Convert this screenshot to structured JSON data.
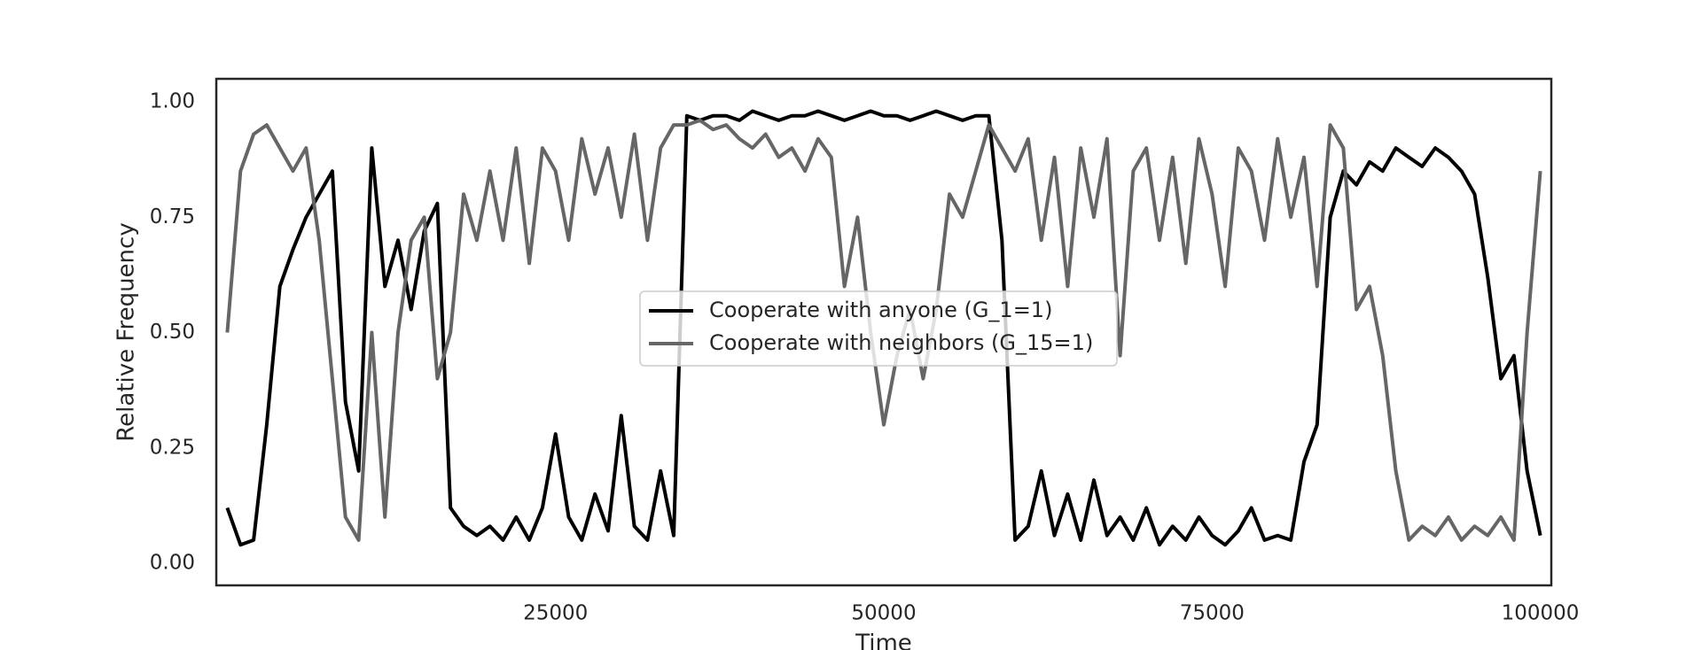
{
  "chart_data": {
    "type": "line",
    "xlabel": "Time",
    "ylabel": "Relative Frequency",
    "x": [
      0,
      1000,
      2000,
      3000,
      4000,
      5000,
      6000,
      7000,
      8000,
      9000,
      10000,
      11000,
      12000,
      13000,
      14000,
      15000,
      16000,
      17000,
      18000,
      19000,
      20000,
      21000,
      22000,
      23000,
      24000,
      25000,
      26000,
      27000,
      28000,
      29000,
      30000,
      31000,
      32000,
      33000,
      34000,
      35000,
      36000,
      37000,
      38000,
      39000,
      40000,
      41000,
      42000,
      43000,
      44000,
      45000,
      46000,
      47000,
      48000,
      49000,
      50000,
      51000,
      52000,
      53000,
      54000,
      55000,
      56000,
      57000,
      58000,
      59000,
      60000,
      61000,
      62000,
      63000,
      64000,
      65000,
      66000,
      67000,
      68000,
      69000,
      70000,
      71000,
      72000,
      73000,
      74000,
      75000,
      76000,
      77000,
      78000,
      79000,
      80000,
      81000,
      82000,
      83000,
      84000,
      85000,
      86000,
      87000,
      88000,
      89000,
      90000,
      91000,
      92000,
      93000,
      94000,
      95000,
      96000,
      97000,
      98000,
      99000,
      100000
    ],
    "series": [
      {
        "name": "Cooperate with anyone (G_1=1)",
        "color": "#000000",
        "values": [
          0.12,
          0.04,
          0.05,
          0.3,
          0.6,
          0.68,
          0.75,
          0.8,
          0.85,
          0.35,
          0.2,
          0.9,
          0.6,
          0.7,
          0.55,
          0.72,
          0.78,
          0.12,
          0.08,
          0.06,
          0.08,
          0.05,
          0.1,
          0.05,
          0.12,
          0.28,
          0.1,
          0.05,
          0.15,
          0.07,
          0.32,
          0.08,
          0.05,
          0.2,
          0.06,
          0.97,
          0.96,
          0.97,
          0.97,
          0.96,
          0.98,
          0.97,
          0.96,
          0.97,
          0.97,
          0.98,
          0.97,
          0.96,
          0.97,
          0.98,
          0.97,
          0.97,
          0.96,
          0.97,
          0.98,
          0.97,
          0.96,
          0.97,
          0.97,
          0.7,
          0.05,
          0.08,
          0.2,
          0.06,
          0.15,
          0.05,
          0.18,
          0.06,
          0.1,
          0.05,
          0.12,
          0.04,
          0.08,
          0.05,
          0.1,
          0.06,
          0.04,
          0.07,
          0.12,
          0.05,
          0.06,
          0.05,
          0.22,
          0.3,
          0.75,
          0.85,
          0.82,
          0.87,
          0.85,
          0.9,
          0.88,
          0.86,
          0.9,
          0.88,
          0.85,
          0.8,
          0.62,
          0.4,
          0.45,
          0.2,
          0.06
        ]
      },
      {
        "name": "Cooperate with neighbors (G_15=1)",
        "color": "#666666",
        "values": [
          0.5,
          0.85,
          0.93,
          0.95,
          0.9,
          0.85,
          0.9,
          0.7,
          0.4,
          0.1,
          0.05,
          0.5,
          0.1,
          0.5,
          0.7,
          0.75,
          0.4,
          0.5,
          0.8,
          0.7,
          0.85,
          0.7,
          0.9,
          0.65,
          0.9,
          0.85,
          0.7,
          0.92,
          0.8,
          0.9,
          0.75,
          0.93,
          0.7,
          0.9,
          0.95,
          0.95,
          0.96,
          0.94,
          0.95,
          0.92,
          0.9,
          0.93,
          0.88,
          0.9,
          0.85,
          0.92,
          0.88,
          0.6,
          0.75,
          0.5,
          0.3,
          0.45,
          0.55,
          0.4,
          0.55,
          0.8,
          0.75,
          0.85,
          0.95,
          0.9,
          0.85,
          0.92,
          0.7,
          0.88,
          0.6,
          0.9,
          0.75,
          0.92,
          0.45,
          0.85,
          0.9,
          0.7,
          0.88,
          0.65,
          0.92,
          0.8,
          0.6,
          0.9,
          0.85,
          0.7,
          0.92,
          0.75,
          0.88,
          0.6,
          0.95,
          0.9,
          0.55,
          0.6,
          0.45,
          0.2,
          0.05,
          0.08,
          0.06,
          0.1,
          0.05,
          0.08,
          0.06,
          0.1,
          0.05,
          0.5,
          0.85
        ]
      }
    ],
    "xlim": [
      -840,
      100840
    ],
    "ylim": [
      -0.048,
      1.05
    ],
    "xticks": [
      25000,
      50000,
      75000,
      100000
    ],
    "yticks": [
      {
        "value": 0,
        "label": "0.00"
      },
      {
        "value": 0.25,
        "label": "0.25"
      },
      {
        "value": 0.5,
        "label": "0.50"
      },
      {
        "value": 0.75,
        "label": "0.75"
      },
      {
        "value": 1,
        "label": "1.00"
      }
    ],
    "legend": "center",
    "grid": false
  }
}
